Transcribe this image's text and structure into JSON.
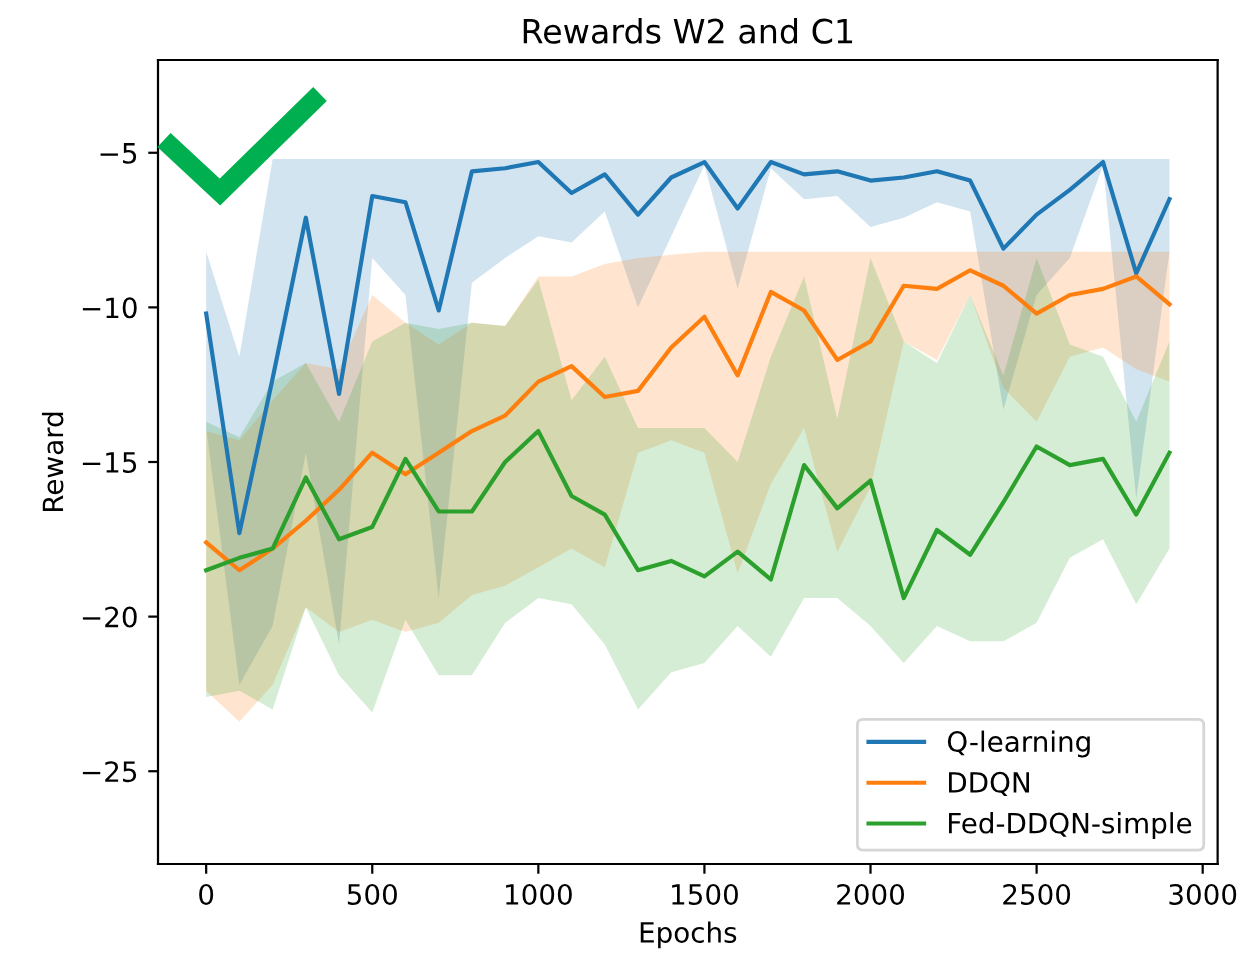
{
  "chart_data": {
    "type": "line",
    "title": "Rewards W2 and C1",
    "xlabel": "Epochs",
    "ylabel": "Reward",
    "x": [
      0,
      100,
      200,
      300,
      400,
      500,
      600,
      700,
      800,
      900,
      1000,
      1100,
      1200,
      1300,
      1400,
      1500,
      1600,
      1700,
      1800,
      1900,
      2000,
      2100,
      2200,
      2300,
      2400,
      2500,
      2600,
      2700,
      2800,
      2900
    ],
    "xlim": [
      -145,
      3045
    ],
    "xticks": [
      0,
      500,
      1000,
      1500,
      2000,
      2500,
      3000
    ],
    "ylim": [
      -28,
      -2
    ],
    "yticks": [
      {
        "value": -25,
        "label": "−25"
      },
      {
        "value": -20,
        "label": "−20"
      },
      {
        "value": -15,
        "label": "−15"
      },
      {
        "value": -10,
        "label": "−10"
      },
      {
        "value": -5,
        "label": "−5"
      }
    ],
    "grid": false,
    "legend": "bottom right",
    "marker": "none",
    "line_style": "solid",
    "series": [
      {
        "name": "Q-learning",
        "color": "#1f77b4",
        "values": [
          -10.2,
          -17.3,
          -12.3,
          -7.1,
          -12.8,
          -6.4,
          -6.6,
          -10.1,
          -5.6,
          -5.5,
          -5.3,
          -6.3,
          -5.7,
          -7.0,
          -5.8,
          -5.3,
          -6.8,
          -5.3,
          -5.7,
          -5.6,
          -5.9,
          -5.8,
          -5.6,
          -5.9,
          -8.1,
          -7.0,
          -6.2,
          -5.3,
          -8.9,
          -6.5
        ],
        "upper": [
          -8.2,
          -11.6,
          -5.2,
          -5.2,
          -5.2,
          -5.2,
          -5.2,
          -5.2,
          -5.2,
          -5.2,
          -5.2,
          -5.2,
          -5.2,
          -5.2,
          -5.2,
          -5.2,
          -5.2,
          -5.2,
          -5.2,
          -5.2,
          -5.2,
          -5.2,
          -5.2,
          -5.2,
          -5.2,
          -5.2,
          -5.2,
          -5.2,
          -5.2,
          -5.2
        ],
        "lower": [
          -13.9,
          -22.2,
          -20.3,
          -14.7,
          -20.9,
          -8.4,
          -9.6,
          -19.4,
          -9.2,
          -8.4,
          -7.7,
          -7.9,
          -6.9,
          -10.0,
          -7.7,
          -5.4,
          -9.4,
          -5.5,
          -6.5,
          -6.4,
          -7.4,
          -7.1,
          -6.6,
          -6.9,
          -13.3,
          -9.6,
          -8.4,
          -5.4,
          -16.2,
          -8.2
        ]
      },
      {
        "name": "DDQN",
        "color": "#ff7f0e",
        "values": [
          -17.6,
          -18.5,
          -17.8,
          -16.9,
          -15.9,
          -14.7,
          -15.4,
          -14.7,
          -14.0,
          -13.5,
          -12.4,
          -11.9,
          -12.9,
          -12.7,
          -11.3,
          -10.3,
          -12.2,
          -9.5,
          -10.1,
          -11.7,
          -11.1,
          -9.3,
          -9.4,
          -8.8,
          -9.3,
          -10.2,
          -9.6,
          -9.4,
          -9.0,
          -9.9
        ],
        "upper": [
          -14.0,
          -14.3,
          -13.0,
          -11.8,
          -12.0,
          -9.6,
          -10.5,
          -11.2,
          -10.5,
          -10.6,
          -9.0,
          -9.0,
          -8.6,
          -8.4,
          -8.3,
          -8.2,
          -8.2,
          -8.2,
          -8.2,
          -8.2,
          -8.2,
          -8.2,
          -8.2,
          -8.2,
          -8.2,
          -8.2,
          -8.2,
          -8.2,
          -8.2,
          -8.2
        ],
        "lower": [
          -22.4,
          -23.4,
          -22.2,
          -19.7,
          -20.5,
          -20.1,
          -20.5,
          -20.2,
          -19.3,
          -19.0,
          -18.4,
          -17.8,
          -18.4,
          -14.7,
          -14.3,
          -14.7,
          -18.6,
          -15.7,
          -13.9,
          -17.9,
          -15.8,
          -11.1,
          -11.7,
          -9.6,
          -12.6,
          -13.7,
          -11.6,
          -11.3,
          -12.0,
          -12.4
        ]
      },
      {
        "name": "Fed-DDQN-simple",
        "color": "#2ca02c",
        "values": [
          -18.5,
          -18.1,
          -17.8,
          -15.5,
          -17.5,
          -17.1,
          -14.9,
          -16.6,
          -16.6,
          -15.0,
          -14.0,
          -16.1,
          -16.7,
          -18.5,
          -18.2,
          -18.7,
          -17.9,
          -18.8,
          -15.1,
          -16.5,
          -15.6,
          -19.4,
          -17.2,
          -18.0,
          -16.3,
          -14.5,
          -15.1,
          -14.9,
          -16.7,
          -14.7
        ],
        "upper": [
          -13.7,
          -14.2,
          -12.4,
          -11.8,
          -13.7,
          -11.1,
          -10.5,
          -10.7,
          -10.5,
          -10.6,
          -9.1,
          -13.0,
          -11.6,
          -13.9,
          -13.9,
          -13.9,
          -15.0,
          -11.6,
          -9.0,
          -13.6,
          -8.4,
          -11.1,
          -11.8,
          -9.6,
          -12.2,
          -8.4,
          -11.2,
          -11.6,
          -13.7,
          -11.1
        ],
        "lower": [
          -22.6,
          -22.4,
          -23.0,
          -19.7,
          -21.9,
          -23.1,
          -20.1,
          -21.9,
          -21.9,
          -20.2,
          -19.4,
          -19.6,
          -20.9,
          -23.0,
          -21.8,
          -21.5,
          -20.3,
          -21.3,
          -19.4,
          -19.4,
          -20.3,
          -21.5,
          -20.3,
          -20.8,
          -20.8,
          -20.2,
          -18.1,
          -17.5,
          -19.6,
          -17.8
        ]
      }
    ]
  }
}
